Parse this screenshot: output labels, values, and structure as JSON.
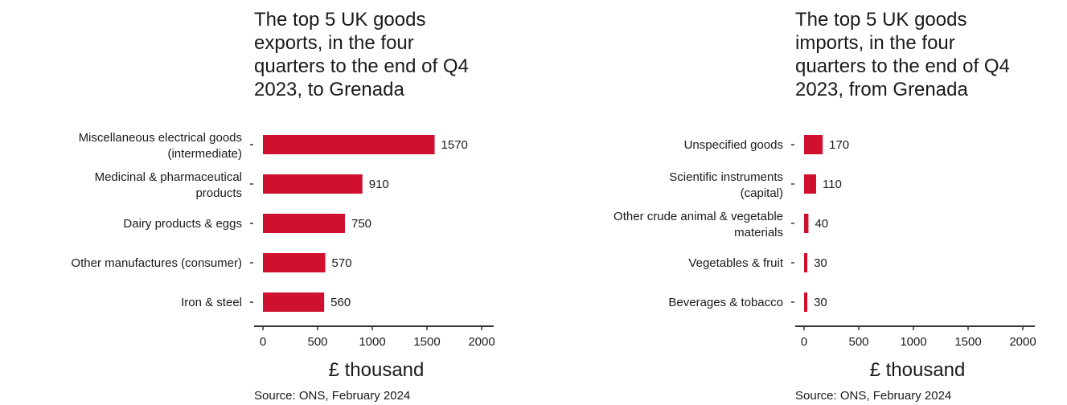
{
  "charts": [
    {
      "title": "The top 5 UK goods\nexports, in the four\nquarters to the end of Q4\n2023, to Grenada",
      "source": "Source: ONS, February 2024"
    },
    {
      "title": "The top 5 UK goods\nimports, in the four\nquarters to the end of Q4\n2023, from Grenada",
      "source": "Source: ONS, February 2024"
    }
  ],
  "colors": {
    "bar": "#d0102f",
    "axis": "#333333"
  },
  "chart_data": [
    {
      "type": "bar",
      "orientation": "horizontal",
      "title": "The top 5 UK goods exports, in the four quarters to the end of Q4 2023, to Grenada",
      "categories": [
        [
          "Miscellaneous electrical goods",
          "(intermediate)"
        ],
        [
          "Medicinal & pharmaceutical",
          "products"
        ],
        [
          "Dairy products & eggs"
        ],
        [
          "Other manufactures (consumer)"
        ],
        [
          "Iron & steel"
        ]
      ],
      "values": [
        1570,
        910,
        750,
        570,
        560
      ],
      "xlabel": "£ thousand",
      "ylabel": "",
      "xlim": [
        0,
        2100
      ],
      "xticks": [
        0,
        500,
        1000,
        1500,
        2000
      ],
      "grid": false,
      "source": "Source: ONS, February 2024"
    },
    {
      "type": "bar",
      "orientation": "horizontal",
      "title": "The top 5 UK goods imports, in the four quarters to the end of Q4 2023, from Grenada",
      "categories": [
        [
          "Unspecified goods"
        ],
        [
          "Scientific instruments",
          "(capital)"
        ],
        [
          "Other crude animal & vegetable",
          "materials"
        ],
        [
          "Vegetables & fruit"
        ],
        [
          "Beverages & tobacco"
        ]
      ],
      "values": [
        170,
        110,
        40,
        30,
        30
      ],
      "xlabel": "£ thousand",
      "ylabel": "",
      "xlim": [
        0,
        2100
      ],
      "xticks": [
        0,
        500,
        1000,
        1500,
        2000
      ],
      "grid": false,
      "source": "Source: ONS, February 2024"
    }
  ]
}
